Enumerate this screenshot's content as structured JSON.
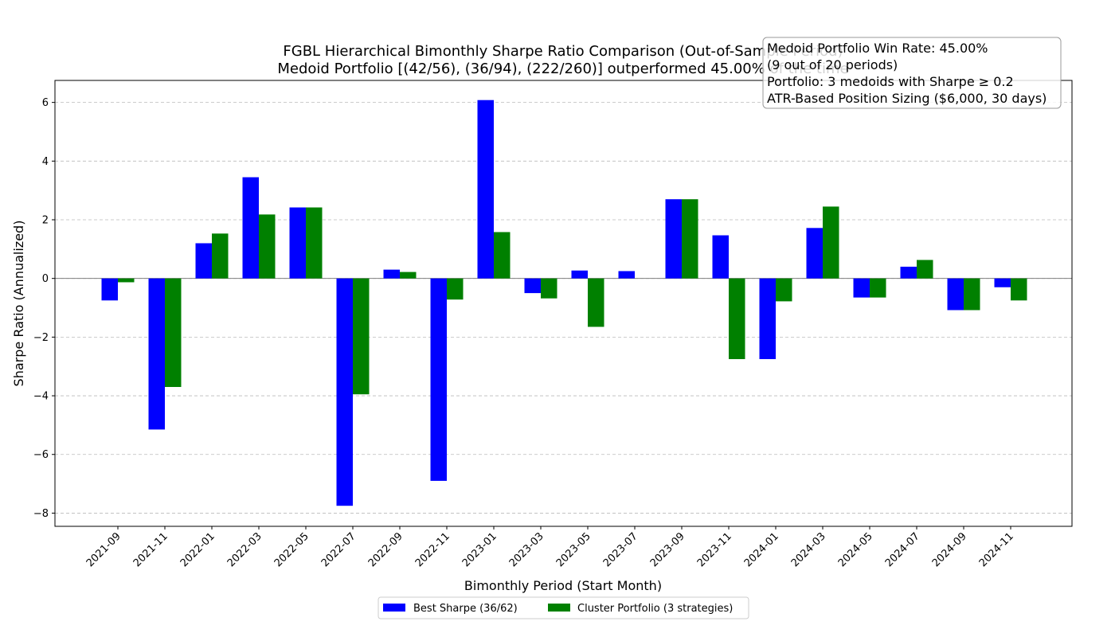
{
  "chart_data": {
    "type": "bar",
    "title": "FGBL Hierarchical Bimonthly Sharpe Ratio Comparison (Out-of-Sample Period)",
    "subtitle": "Medoid Portfolio [(42/56), (36/94), (222/260)] outperformed 45.00% of the time",
    "xlabel": "Bimonthly Period (Start Month)",
    "ylabel": "Sharpe Ratio (Annualized)",
    "ylim": [
      -8.45,
      6.75
    ],
    "yticks": [
      6,
      4,
      2,
      0,
      -2,
      -4,
      -6,
      -8
    ],
    "grid": "y-dashed",
    "legend_position": "bottom-center",
    "categories": [
      "2021-09",
      "2021-11",
      "2022-01",
      "2022-03",
      "2022-05",
      "2022-07",
      "2022-09",
      "2022-11",
      "2023-01",
      "2023-03",
      "2023-05",
      "2023-07",
      "2023-09",
      "2023-11",
      "2024-01",
      "2024-03",
      "2024-05",
      "2024-07",
      "2024-09",
      "2024-11"
    ],
    "series": [
      {
        "name": "Best Sharpe (36/62)",
        "color": "#0000ff",
        "values": [
          -0.75,
          -5.15,
          1.2,
          3.45,
          2.42,
          -7.75,
          0.3,
          -6.9,
          6.08,
          -0.5,
          0.27,
          0.25,
          2.7,
          1.47,
          -2.75,
          1.72,
          -0.65,
          0.4,
          -1.08,
          -0.3
        ]
      },
      {
        "name": "Cluster Portfolio (3 strategies)",
        "color": "#008000",
        "values": [
          -0.13,
          -3.7,
          1.53,
          2.18,
          2.42,
          -3.95,
          0.22,
          -0.72,
          1.58,
          -0.68,
          -1.65,
          0.0,
          2.7,
          -2.75,
          -0.78,
          2.45,
          -0.65,
          0.63,
          -1.08,
          -0.75
        ]
      }
    ],
    "annotation": {
      "lines": [
        "Medoid Portfolio Win Rate: 45.00%",
        "(9 out of 20 periods)",
        "Portfolio: 3 medoids with Sharpe ≥ 0.2",
        "ATR-Based Position Sizing ($6,000, 30 days)"
      ]
    }
  }
}
